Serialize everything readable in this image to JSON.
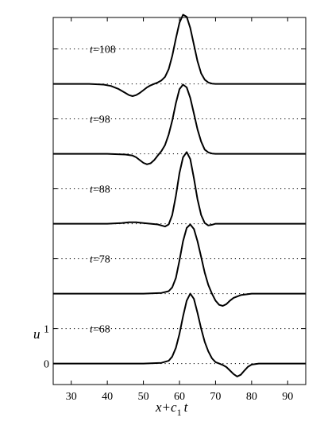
{
  "chart_data": {
    "type": "line",
    "xlabel_base": "x+c",
    "xlabel_sub": "1",
    "xlabel_end": "t",
    "ylabel": "u",
    "xlim": [
      25,
      95
    ],
    "xticks": [
      30,
      40,
      50,
      60,
      70,
      80,
      90
    ],
    "yticks_bottom": [
      0,
      1
    ],
    "offset_per_panel": 2,
    "grid": "dotted reference line at each panel baseline and at unit height",
    "series": [
      {
        "label_prefix": "t",
        "label_value": "=68",
        "x": [
          25,
          40,
          50,
          55,
          57,
          58,
          59,
          60,
          61,
          62,
          63,
          64,
          65,
          66,
          67,
          68,
          69,
          70,
          71,
          72,
          73,
          74,
          75,
          76,
          77,
          78,
          79,
          80,
          82,
          85,
          95
        ],
        "y": [
          0,
          0,
          0,
          0.02,
          0.08,
          0.2,
          0.45,
          0.85,
          1.35,
          1.8,
          2.0,
          1.85,
          1.45,
          1.0,
          0.62,
          0.35,
          0.15,
          0.04,
          0,
          -0.04,
          -0.1,
          -0.2,
          -0.3,
          -0.37,
          -0.32,
          -0.2,
          -0.09,
          -0.03,
          0,
          0,
          0
        ]
      },
      {
        "label_prefix": "t",
        "label_value": "=78",
        "x": [
          25,
          40,
          50,
          55,
          57,
          58,
          59,
          60,
          61,
          62,
          63,
          64,
          65,
          66,
          67,
          68,
          69,
          70,
          71,
          72,
          73,
          74,
          75,
          77,
          80,
          85,
          95
        ],
        "y": [
          0,
          0,
          0,
          0.02,
          0.07,
          0.18,
          0.45,
          0.95,
          1.5,
          1.88,
          1.98,
          1.85,
          1.5,
          1.05,
          0.6,
          0.25,
          0.0,
          -0.2,
          -0.32,
          -0.35,
          -0.3,
          -0.2,
          -0.12,
          -0.04,
          0,
          0,
          0
        ]
      },
      {
        "label_prefix": "t",
        "label_value": "=88",
        "x": [
          25,
          40,
          44,
          46,
          48,
          50,
          52,
          54,
          55,
          56,
          57,
          58,
          59,
          60,
          61,
          62,
          63,
          64,
          65,
          66,
          67,
          68,
          69,
          70,
          72,
          75,
          95
        ],
        "y": [
          0,
          0,
          0.02,
          0.04,
          0.04,
          0.02,
          0.0,
          -0.02,
          -0.05,
          -0.08,
          -0.02,
          0.25,
          0.8,
          1.45,
          1.9,
          2.05,
          1.85,
          1.3,
          0.7,
          0.25,
          0.02,
          -0.05,
          -0.03,
          0,
          0,
          0,
          0
        ]
      },
      {
        "label_prefix": "t",
        "label_value": "=98",
        "x": [
          25,
          40,
          45,
          47,
          48,
          49,
          50,
          51,
          52,
          53,
          54,
          55,
          56,
          57,
          58,
          59,
          60,
          61,
          62,
          63,
          64,
          65,
          66,
          67,
          68,
          69,
          70,
          72,
          75,
          95
        ],
        "y": [
          0,
          0,
          -0.02,
          -0.05,
          -0.1,
          -0.18,
          -0.26,
          -0.3,
          -0.27,
          -0.18,
          -0.05,
          0.08,
          0.25,
          0.55,
          0.95,
          1.45,
          1.85,
          1.98,
          1.9,
          1.6,
          1.15,
          0.7,
          0.35,
          0.12,
          0.04,
          0.01,
          0,
          0,
          0,
          0
        ]
      },
      {
        "label_prefix": "t",
        "label_value": "=108",
        "x": [
          25,
          35,
          39,
          41,
          43,
          45,
          46,
          47,
          48,
          49,
          50,
          51,
          52,
          53,
          54,
          55,
          56,
          57,
          58,
          59,
          60,
          61,
          62,
          63,
          64,
          65,
          66,
          67,
          68,
          69,
          70,
          72,
          75,
          95
        ],
        "y": [
          0,
          0,
          -0.02,
          -0.06,
          -0.14,
          -0.26,
          -0.32,
          -0.35,
          -0.32,
          -0.26,
          -0.18,
          -0.1,
          -0.04,
          0.0,
          0.04,
          0.1,
          0.2,
          0.42,
          0.8,
          1.3,
          1.75,
          1.98,
          1.92,
          1.6,
          1.12,
          0.65,
          0.3,
          0.12,
          0.04,
          0.01,
          0,
          0,
          0,
          0
        ]
      }
    ]
  }
}
